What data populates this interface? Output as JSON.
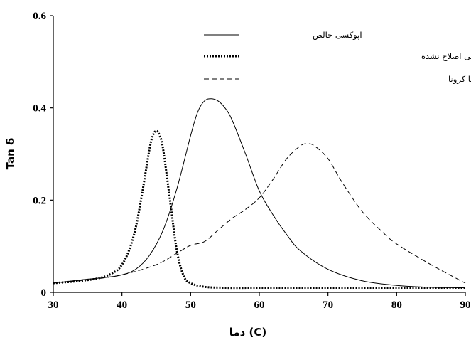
{
  "chart_data": {
    "type": "line",
    "xlabel": "دما (C)",
    "ylabel": "Tan δ",
    "xlim": [
      30,
      90
    ],
    "ylim": [
      0,
      0.6
    ],
    "xticks": [
      30,
      40,
      50,
      60,
      70,
      80,
      90
    ],
    "yticks": [
      0,
      0.2,
      0.4,
      0.6
    ],
    "ytick_labels": [
      "0",
      "0.2",
      "0.4",
      "0.6"
    ],
    "grid": false,
    "legend_position": "top-right",
    "series": [
      {
        "name": "اپوکسی خالص",
        "style": "solid",
        "x": [
          30,
          34,
          38,
          40,
          42,
          44,
          46,
          48,
          50,
          51,
          52,
          53,
          54,
          55,
          56,
          58,
          60,
          62,
          64,
          66,
          70,
          75,
          80,
          85,
          90
        ],
        "y": [
          0.02,
          0.027,
          0.033,
          0.038,
          0.05,
          0.08,
          0.135,
          0.225,
          0.34,
          0.39,
          0.415,
          0.42,
          0.415,
          0.4,
          0.375,
          0.3,
          0.22,
          0.168,
          0.125,
          0.09,
          0.05,
          0.025,
          0.015,
          0.011,
          0.01
        ]
      },
      {
        "name": "اپوکسی حاوی نانوالیاف کربنی اصلاح نشده",
        "style": "dotted",
        "x": [
          30,
          34,
          37,
          39,
          40,
          41,
          42,
          43,
          44,
          44.5,
          45,
          45.5,
          46,
          47,
          48,
          49,
          50,
          52,
          55,
          60,
          70,
          80,
          90
        ],
        "y": [
          0.02,
          0.025,
          0.032,
          0.045,
          0.06,
          0.09,
          0.14,
          0.22,
          0.31,
          0.34,
          0.35,
          0.34,
          0.31,
          0.2,
          0.09,
          0.035,
          0.02,
          0.012,
          0.01,
          0.01,
          0.01,
          0.01,
          0.01
        ]
      },
      {
        "name": "اپوکسی حاوی نانوالیاف کربنی اصلاح شده با کرونا",
        "style": "dashed",
        "x": [
          30,
          35,
          40,
          45,
          48,
          50,
          52,
          54,
          56,
          58,
          60,
          62,
          64,
          66,
          67,
          68,
          70,
          72,
          75,
          78,
          80,
          85,
          90
        ],
        "y": [
          0.02,
          0.027,
          0.038,
          0.06,
          0.085,
          0.102,
          0.11,
          0.135,
          0.16,
          0.18,
          0.205,
          0.245,
          0.29,
          0.318,
          0.322,
          0.318,
          0.29,
          0.24,
          0.175,
          0.13,
          0.105,
          0.06,
          0.02
        ]
      }
    ]
  }
}
